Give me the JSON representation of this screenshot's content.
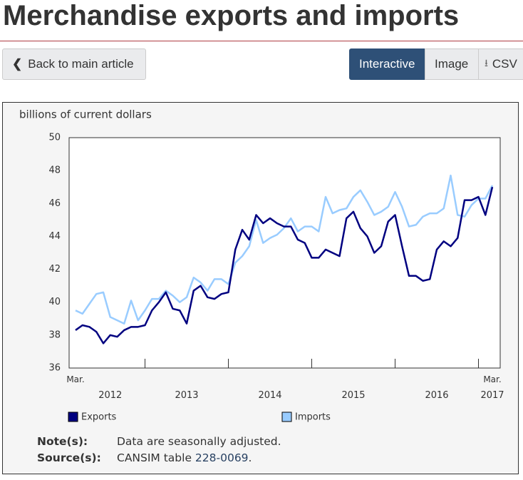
{
  "header": {
    "title": "Merchandise exports and imports"
  },
  "nav": {
    "back": "Back to main article",
    "views": [
      "Interactive",
      "Image",
      "CSV"
    ]
  },
  "chart_data": {
    "type": "line",
    "y_label": "billions of current dollars",
    "ylim": [
      36,
      50
    ],
    "yticks": [
      36,
      38,
      40,
      42,
      44,
      46,
      48,
      50
    ],
    "xlim": [
      0,
      60
    ],
    "xticks": [
      10,
      22,
      34,
      46,
      58
    ],
    "start_label": "Mar.",
    "end_label": "Mar.",
    "year_labels": [
      "2012",
      "2013",
      "2014",
      "2015",
      "2016",
      "2017"
    ],
    "legend": "bottom",
    "series": [
      {
        "name": "Exports",
        "color": "#000080",
        "values": [
          38.3,
          38.6,
          38.5,
          38.2,
          37.5,
          38.0,
          37.9,
          38.3,
          38.5,
          38.5,
          38.6,
          39.5,
          40.0,
          40.6,
          39.6,
          39.5,
          38.7,
          40.7,
          41.0,
          40.3,
          40.2,
          40.5,
          40.6,
          43.2,
          44.4,
          43.8,
          45.3,
          44.8,
          45.1,
          44.8,
          44.6,
          44.6,
          43.8,
          43.6,
          42.7,
          42.7,
          43.2,
          43.0,
          42.8,
          45.1,
          45.5,
          44.5,
          44.0,
          43.0,
          43.4,
          44.9,
          45.3,
          43.4,
          41.6,
          41.6,
          41.3,
          41.4,
          43.2,
          43.7,
          43.4,
          43.9,
          46.2,
          46.2,
          46.4,
          45.3,
          47.0
        ]
      },
      {
        "name": "Imports",
        "color": "#99ccff",
        "values": [
          39.5,
          39.3,
          39.9,
          40.5,
          40.6,
          39.1,
          38.9,
          38.7,
          40.1,
          38.9,
          39.5,
          40.2,
          40.2,
          40.7,
          40.4,
          40.0,
          40.3,
          41.5,
          41.2,
          40.7,
          41.4,
          41.4,
          41.1,
          42.4,
          42.8,
          43.4,
          45.0,
          43.6,
          43.9,
          44.1,
          44.5,
          45.1,
          44.3,
          44.6,
          44.6,
          44.3,
          46.4,
          45.4,
          45.6,
          45.7,
          46.4,
          46.8,
          46.1,
          45.3,
          45.5,
          45.8,
          46.7,
          45.8,
          44.6,
          44.7,
          45.2,
          45.4,
          45.4,
          45.7,
          47.7,
          45.3,
          45.2,
          45.9,
          46.3,
          46.3,
          47.1
        ]
      }
    ]
  },
  "notes": {
    "note_label": "Note(s):",
    "note": "Data are seasonally adjusted.",
    "source_label": "Source(s):",
    "source_text": "CANSIM table ",
    "source_link": "228-0069",
    "source_end": "."
  }
}
